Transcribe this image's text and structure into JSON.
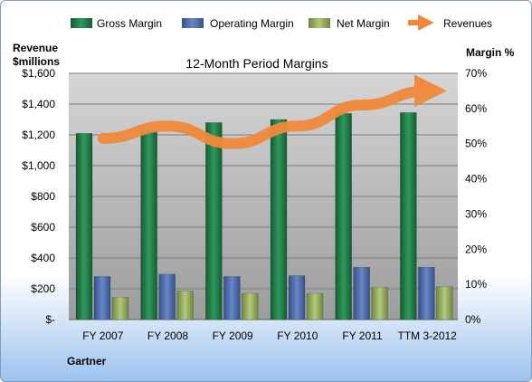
{
  "chart_data": {
    "type": "bar",
    "title": "12-Month Period Margins",
    "source_label": "Gartner",
    "ylabel_left": [
      "Revenue",
      "$millions"
    ],
    "ylabel_right": "Margin %",
    "ylim_left": [
      0,
      1600
    ],
    "ylim_right": [
      0,
      70
    ],
    "y_ticks_left": [
      "$-",
      "$200",
      "$400",
      "$600",
      "$800",
      "$1,000",
      "$1,200",
      "$1,400",
      "$1,600"
    ],
    "y_ticks_right": [
      "0%",
      "10%",
      "20%",
      "30%",
      "40%",
      "50%",
      "60%",
      "70%"
    ],
    "categories": [
      "FY 2007",
      "FY 2008",
      "FY 2009",
      "FY 2010",
      "FY 2011",
      "TTM 3-2012"
    ],
    "grid": true,
    "legend_position": "top",
    "series": [
      {
        "name": "Gross Margin",
        "axis": "left",
        "color": "#1e7a45",
        "values": [
          1210,
          1225,
          1280,
          1300,
          1340,
          1345
        ]
      },
      {
        "name": "Operating Margin",
        "axis": "left",
        "color": "#4f6fae",
        "values": [
          280,
          295,
          280,
          285,
          340,
          340
        ]
      },
      {
        "name": "Net Margin",
        "axis": "left",
        "color": "#93ad5a",
        "values": [
          145,
          185,
          170,
          170,
          210,
          215
        ]
      },
      {
        "name": "Revenues",
        "axis": "right",
        "type": "line",
        "color": "#f08a3a",
        "values": [
          51.5,
          55,
          50,
          55,
          61,
          65
        ]
      }
    ]
  }
}
